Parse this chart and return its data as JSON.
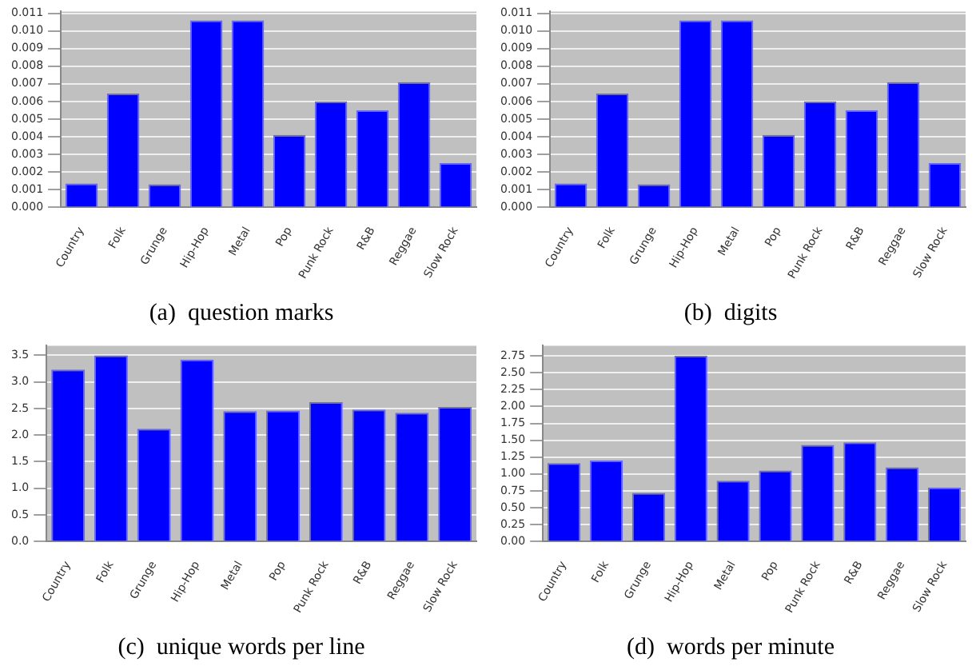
{
  "chart_data": [
    {
      "type": "bar",
      "title": "(a)  question marks",
      "categories": [
        "Country",
        "Folk",
        "Grunge",
        "Hip-Hop",
        "Metal",
        "Pop",
        "Punk Rock",
        "R&B",
        "Reggae",
        "Slow Rock"
      ],
      "values": [
        0.00135,
        0.00645,
        0.0013,
        0.0106,
        0.0106,
        0.0041,
        0.006,
        0.0055,
        0.0071,
        0.0025
      ],
      "color": "#0000ff",
      "ylim": [
        0,
        0.0111
      ],
      "yticks": [
        {
          "value": 0,
          "label": "0.000"
        },
        {
          "value": 0.001,
          "label": "0.001"
        },
        {
          "value": 0.002,
          "label": "0.002"
        },
        {
          "value": 0.003,
          "label": "0.003"
        },
        {
          "value": 0.004,
          "label": "0.004"
        },
        {
          "value": 0.005,
          "label": "0.005"
        },
        {
          "value": 0.006,
          "label": "0.006"
        },
        {
          "value": 0.007,
          "label": "0.007"
        },
        {
          "value": 0.008,
          "label": "0.008"
        },
        {
          "value": 0.009,
          "label": "0.009"
        },
        {
          "value": 0.01,
          "label": "0.010"
        },
        {
          "value": 0.011,
          "label": "0.011"
        }
      ],
      "grid": "y",
      "legend": false
    },
    {
      "type": "bar",
      "title": "(b)  digits",
      "categories": [
        "Country",
        "Folk",
        "Grunge",
        "Hip-Hop",
        "Metal",
        "Pop",
        "Punk Rock",
        "R&B",
        "Reggae",
        "Slow Rock"
      ],
      "values": [
        0.00135,
        0.00645,
        0.0013,
        0.0106,
        0.0106,
        0.0041,
        0.006,
        0.0055,
        0.0071,
        0.0025
      ],
      "color": "#0000ff",
      "ylim": [
        0,
        0.0111
      ],
      "yticks": [
        {
          "value": 0,
          "label": "0.000"
        },
        {
          "value": 0.001,
          "label": "0.001"
        },
        {
          "value": 0.002,
          "label": "0.002"
        },
        {
          "value": 0.003,
          "label": "0.003"
        },
        {
          "value": 0.004,
          "label": "0.004"
        },
        {
          "value": 0.005,
          "label": "0.005"
        },
        {
          "value": 0.006,
          "label": "0.006"
        },
        {
          "value": 0.007,
          "label": "0.007"
        },
        {
          "value": 0.008,
          "label": "0.008"
        },
        {
          "value": 0.009,
          "label": "0.009"
        },
        {
          "value": 0.01,
          "label": "0.010"
        },
        {
          "value": 0.011,
          "label": "0.011"
        }
      ],
      "grid": "y",
      "legend": false
    },
    {
      "type": "bar",
      "title": "(c)  unique words per line",
      "categories": [
        "Country",
        "Folk",
        "Grunge",
        "Hip-Hop",
        "Metal",
        "Pop",
        "Punk Rock",
        "R&B",
        "Reggae",
        "Slow Rock"
      ],
      "values": [
        3.23,
        3.5,
        2.12,
        3.42,
        2.45,
        2.46,
        2.62,
        2.48,
        2.42,
        2.53
      ],
      "color": "#0000ff",
      "ylim": [
        0,
        3.68
      ],
      "yticks": [
        {
          "value": 0,
          "label": "0.0"
        },
        {
          "value": 0.5,
          "label": "0.5"
        },
        {
          "value": 1,
          "label": "1.0"
        },
        {
          "value": 1.5,
          "label": "1.5"
        },
        {
          "value": 2,
          "label": "2.0"
        },
        {
          "value": 2.5,
          "label": "2.5"
        },
        {
          "value": 3,
          "label": "3.0"
        },
        {
          "value": 3.5,
          "label": "3.5"
        }
      ],
      "grid": "y",
      "legend": false
    },
    {
      "type": "bar",
      "title": "(d)  words per minute",
      "categories": [
        "Country",
        "Folk",
        "Grunge",
        "Hip-Hop",
        "Metal",
        "Pop",
        "Punk Rock",
        "R&B",
        "Reggae",
        "Slow Rock"
      ],
      "values": [
        1.16,
        1.2,
        0.72,
        2.75,
        0.9,
        1.05,
        1.43,
        1.47,
        1.1,
        0.8
      ],
      "color": "#0000ff",
      "ylim": [
        0,
        2.9
      ],
      "yticks": [
        {
          "value": 0,
          "label": "0.00"
        },
        {
          "value": 0.25,
          "label": "0.25"
        },
        {
          "value": 0.5,
          "label": "0.50"
        },
        {
          "value": 0.75,
          "label": "0.75"
        },
        {
          "value": 1,
          "label": "1.00"
        },
        {
          "value": 1.25,
          "label": "1.25"
        },
        {
          "value": 1.5,
          "label": "1.50"
        },
        {
          "value": 1.75,
          "label": "1.75"
        },
        {
          "value": 2,
          "label": "2.00"
        },
        {
          "value": 2.25,
          "label": "2.25"
        },
        {
          "value": 2.5,
          "label": "2.50"
        },
        {
          "value": 2.75,
          "label": "2.75"
        }
      ],
      "grid": "y",
      "legend": false
    }
  ]
}
